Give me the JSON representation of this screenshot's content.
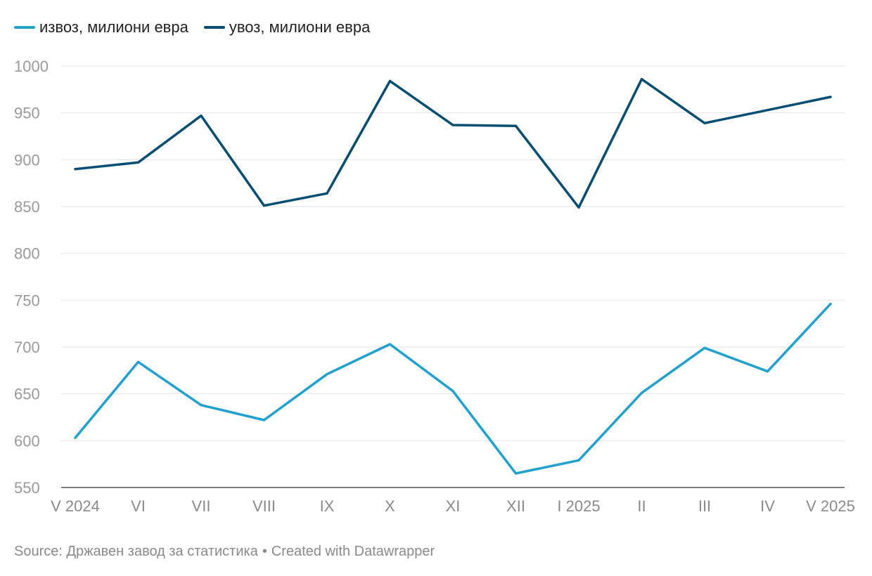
{
  "chart_data": {
    "type": "line",
    "categories": [
      "V 2024",
      "VI",
      "VII",
      "VIII",
      "IX",
      "X",
      "XI",
      "XII",
      "I 2025",
      "II",
      "III",
      "IV",
      "V 2025"
    ],
    "series": [
      {
        "name": "извоз, милиони евра",
        "color": "#22a1cf",
        "values": [
          603,
          684,
          638,
          622,
          671,
          703,
          653,
          565,
          579,
          651,
          699,
          674,
          746
        ]
      },
      {
        "name": "увоз, милиони евра",
        "color": "#084e73",
        "values": [
          890,
          897,
          947,
          851,
          864,
          984,
          937,
          936,
          849,
          986,
          939,
          953,
          967
        ]
      }
    ],
    "yticks": [
      550,
      600,
      650,
      700,
      750,
      800,
      850,
      900,
      950,
      1000
    ],
    "ylim": [
      550,
      1000
    ],
    "grid": true,
    "legend_position": "top-left"
  },
  "footer": {
    "source": "Source: Државен завод за статистика",
    "separator": "•",
    "credit": "Created with Datawrapper"
  }
}
